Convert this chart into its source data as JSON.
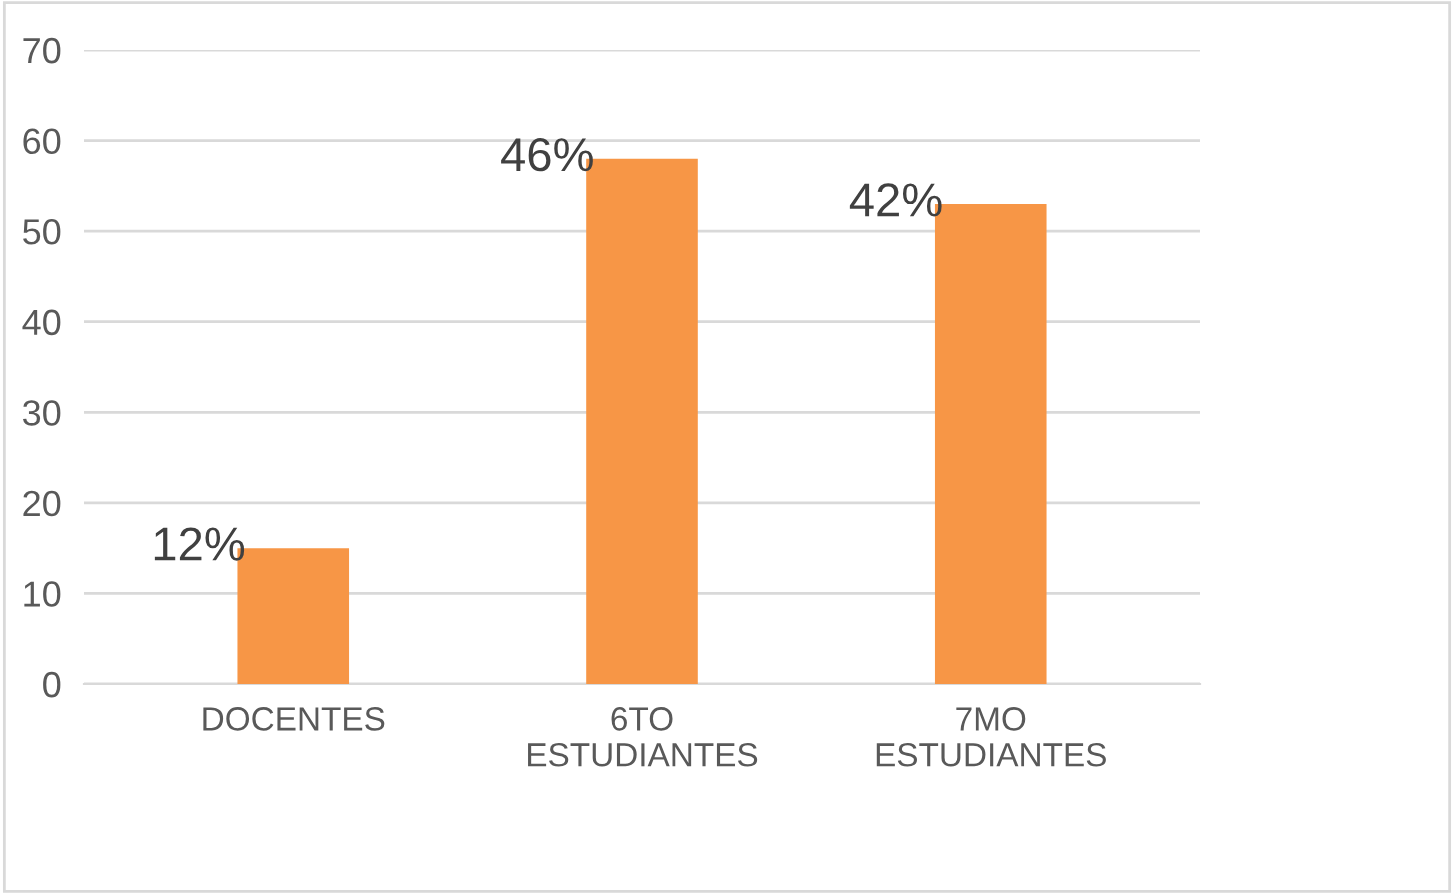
{
  "chart_data": {
    "type": "bar",
    "categories": [
      "DOCENTES",
      "6TO\nESTUDIANTES",
      "7MO\nESTUDIANTES"
    ],
    "values": [
      15,
      58,
      53
    ],
    "color": "#f79646",
    "annotations": [
      {
        "text": "12%",
        "x": "DOCENTES",
        "y": 15
      },
      {
        "text": "46%",
        "x": "6TO\nESTUDIANTES",
        "y": 58
      },
      {
        "text": "42%",
        "x": "7MO\nESTUDIANTES",
        "y": 53
      }
    ],
    "ylim": [
      0,
      70
    ],
    "yticks": [
      0,
      10,
      20,
      30,
      40,
      50,
      60,
      70
    ],
    "grid": "y",
    "legend": false
  }
}
